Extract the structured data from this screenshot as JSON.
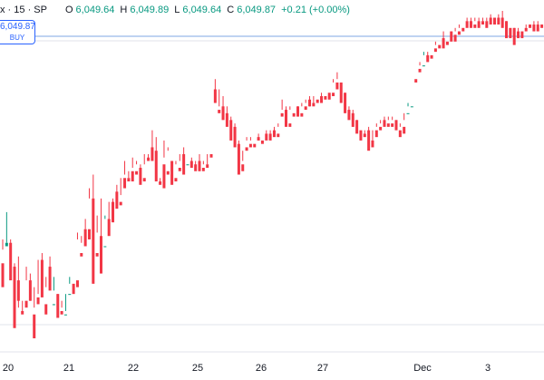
{
  "header": {
    "symbol": "x · 15 · SP",
    "open_label": "O",
    "open": "6,049.64",
    "high_label": "H",
    "high": "6,049.89",
    "low_label": "L",
    "low": "6,049.64",
    "close_label": "C",
    "close": "6,049.87",
    "change": "+0.21 (+0.00%)"
  },
  "buy_box": {
    "price": "6,049.87",
    "label": "BUY"
  },
  "colors": {
    "up": "#089981",
    "down": "#f23645",
    "grid": "#e0e3eb",
    "price_line": "#7fa7e3",
    "text": "#131722"
  },
  "chart_data": {
    "type": "candlestick",
    "x_tick_labels": [
      "20",
      "21",
      "22",
      "25",
      "26",
      "27",
      "Dec",
      "3"
    ],
    "ylim": [
      5960,
      6052
    ],
    "candles": [
      [
        0,
        5978,
        5985,
        5982,
        5971
      ],
      [
        1,
        5983,
        5993,
        5984,
        5984
      ],
      [
        2,
        5984,
        5985,
        5979,
        5973
      ],
      [
        3,
        5977,
        5978,
        5961,
        5959
      ],
      [
        4,
        5973,
        5980,
        5965,
        5967
      ],
      [
        5,
        5964,
        5964,
        5967,
        5963
      ],
      [
        6,
        5967,
        5977,
        5973,
        5965
      ],
      [
        7,
        5973,
        5975,
        5967,
        5967
      ],
      [
        8,
        5963,
        5971,
        5965,
        5956
      ],
      [
        9,
        5968,
        5969,
        5979,
        5966
      ],
      [
        10,
        5979,
        5981,
        5970,
        5968
      ],
      [
        11,
        5966,
        5971,
        5974,
        5963
      ],
      [
        12,
        5977,
        5980,
        5974,
        5970
      ],
      [
        13,
        5966,
        5974,
        5970,
        5966
      ],
      [
        14,
        5969,
        5969,
        5963,
        5962
      ],
      [
        15,
        5964,
        5967,
        5965,
        5963
      ],
      [
        16,
        5963,
        5964,
        5969,
        5963
      ],
      [
        17,
        5969,
        5972,
        5974,
        5969
      ],
      [
        18,
        5972,
        5973,
        5973,
        5969
      ],
      [
        19,
        5973,
        5987,
        5985,
        5971
      ],
      [
        20,
        5981,
        5986,
        5984,
        5980
      ],
      [
        21,
        5988,
        5991,
        5988,
        5983
      ],
      [
        22,
        5988,
        6000,
        5997,
        5985
      ],
      [
        23,
        5997,
        6004,
        5983,
        5972
      ],
      [
        24,
        5981,
        5992,
        5987,
        5980
      ],
      [
        25,
        5986,
        5997,
        5978,
        5975
      ],
      [
        26,
        5983,
        5992,
        5991,
        5983
      ],
      [
        27,
        5991,
        5996,
        5991,
        5986
      ],
      [
        28,
        5996,
        5997,
        5994,
        5990
      ],
      [
        29,
        5999,
        6001,
        5996,
        5994
      ],
      [
        30,
        5996,
        5998,
        6003,
        5995
      ],
      [
        31,
        6003,
        6008,
        6004,
        6000
      ],
      [
        32,
        6003,
        6005,
        6003,
        6002
      ],
      [
        33,
        6005,
        6009,
        6006,
        6002
      ],
      [
        34,
        6005,
        6008,
        6007,
        6004
      ],
      [
        35,
        6006,
        6007,
        6002,
        6001
      ],
      [
        36,
        6003,
        6007,
        6010,
        6002
      ],
      [
        37,
        6009,
        6010,
        6008,
        6008
      ],
      [
        38,
        6012,
        6017,
        6009,
        6008
      ],
      [
        39,
        6011,
        6015,
        6003,
        6002
      ],
      [
        40,
        6002,
        6002,
        6003,
        6001
      ],
      [
        41,
        6007,
        6014,
        6009,
        6000
      ],
      [
        42,
        6005,
        6011,
        6012,
        6004
      ],
      [
        43,
        6008,
        6008,
        6002,
        6001
      ],
      [
        44,
        6003,
        6008,
        6007,
        6002
      ],
      [
        45,
        6006,
        6010,
        6008,
        6005
      ],
      [
        46,
        6010,
        6012,
        6005,
        6004
      ],
      [
        47,
        6007,
        6007,
        6007,
        6007
      ],
      [
        48,
        6008,
        6009,
        6007,
        6006
      ],
      [
        49,
        6007,
        6008,
        6006,
        6005
      ],
      [
        50,
        6008,
        6010,
        6005,
        6005
      ],
      [
        51,
        6006,
        6007,
        6008,
        6005
      ],
      [
        52,
        6007,
        6007,
        6010,
        6006
      ],
      [
        53,
        6010,
        6011,
        6011,
        6009
      ],
      [
        54,
        6029,
        6032,
        6025,
        6025
      ],
      [
        55,
        6023,
        6029,
        6024,
        6022
      ],
      [
        56,
        6024,
        6027,
        6022,
        6020
      ],
      [
        57,
        6022,
        6024,
        6020,
        6018
      ],
      [
        58,
        6020,
        6021,
        6018,
        6014
      ],
      [
        59,
        6018,
        6019,
        6013,
        6012
      ],
      [
        60,
        6013,
        6014,
        6007,
        6004
      ],
      [
        61,
        6007,
        6008,
        6011,
        6005
      ],
      [
        62,
        6012,
        6015,
        6014,
        6011
      ],
      [
        63,
        6013,
        6015,
        6014,
        6012
      ],
      [
        64,
        6013,
        6015,
        6015,
        6012
      ],
      [
        65,
        6015,
        6016,
        6014,
        6014
      ],
      [
        66,
        6014,
        6016,
        6016,
        6013
      ],
      [
        67,
        6016,
        6017,
        6016,
        6014
      ],
      [
        68,
        6016,
        6017,
        6016,
        6014
      ],
      [
        69,
        6017,
        6018,
        6016,
        6015
      ],
      [
        70,
        6016,
        6019,
        6018,
        6015
      ],
      [
        71,
        6022,
        6026,
        6023,
        6021
      ],
      [
        72,
        6023,
        6024,
        6019,
        6018
      ],
      [
        73,
        6019,
        6024,
        6023,
        6018
      ],
      [
        74,
        6022,
        6024,
        6024,
        6021
      ],
      [
        75,
        6024,
        6024,
        6022,
        6021
      ],
      [
        76,
        6022,
        6025,
        6024,
        6021
      ],
      [
        77,
        6024,
        6025,
        6026,
        6023
      ],
      [
        78,
        6026,
        6027,
        6024,
        6024
      ],
      [
        79,
        6025,
        6027,
        6025,
        6024
      ],
      [
        80,
        6026,
        6027,
        6027,
        6025
      ],
      [
        81,
        6027,
        6028,
        6027,
        6025
      ],
      [
        82,
        6027,
        6028,
        6028,
        6026
      ],
      [
        83,
        6028,
        6029,
        6029,
        6026
      ],
      [
        84,
        6028,
        6032,
        6031,
        6027
      ],
      [
        85,
        6031,
        6034,
        6032,
        6029
      ],
      [
        86,
        6031,
        6031,
        6028,
        6025
      ],
      [
        87,
        6028,
        6028,
        6023,
        6022
      ],
      [
        88,
        6023,
        6024,
        6021,
        6020
      ],
      [
        89,
        6022,
        6023,
        6018,
        6018
      ],
      [
        90,
        6020,
        6020,
        6017,
        6016
      ],
      [
        91,
        6017,
        6017,
        6017,
        6014
      ],
      [
        92,
        6016,
        6016,
        6017,
        6015
      ],
      [
        93,
        6017,
        6018,
        6014,
        6011
      ],
      [
        94,
        6014,
        6014,
        6017,
        6012
      ],
      [
        95,
        6017,
        6019,
        6018,
        6015
      ],
      [
        96,
        6018,
        6020,
        6019,
        6017
      ],
      [
        97,
        6020,
        6021,
        6019,
        6018
      ],
      [
        98,
        6019,
        6021,
        6020,
        6018
      ],
      [
        99,
        6019,
        6021,
        6020,
        6018
      ],
      [
        100,
        6020,
        6020,
        6018,
        6017
      ],
      [
        101,
        6017,
        6018,
        6019,
        6015
      ],
      [
        102,
        6018,
        6020,
        6022,
        6016
      ],
      [
        103,
        6022,
        6025,
        6024,
        6022
      ],
      [
        104,
        6024,
        6030,
        6030,
        6024
      ],
      [
        105,
        6032,
        6034,
        6034,
        6031
      ],
      [
        106,
        6035,
        6037,
        6036,
        6034
      ],
      [
        107,
        6036,
        6039,
        6040,
        6036
      ],
      [
        108,
        6039,
        6040,
        6038,
        6037
      ],
      [
        109,
        6039,
        6041,
        6041,
        6038
      ],
      [
        110,
        6041,
        6043,
        6042,
        6040
      ],
      [
        111,
        6042,
        6044,
        6044,
        6041
      ],
      [
        112,
        6044,
        6046,
        6042,
        6041
      ],
      [
        113,
        6043,
        6046,
        6046,
        6042
      ],
      [
        114,
        6046,
        6046,
        6044,
        6043
      ],
      [
        115,
        6045,
        6047,
        6046,
        6043
      ],
      [
        116,
        6046,
        6048,
        6047,
        6045
      ],
      [
        117,
        6047,
        6049,
        6049,
        6046
      ],
      [
        118,
        6049,
        6050,
        6049,
        6047
      ],
      [
        119,
        6049,
        6050,
        6048,
        6047
      ],
      [
        120,
        6048,
        6050,
        6049,
        6047
      ],
      [
        121,
        6049,
        6050,
        6049,
        6047
      ],
      [
        122,
        6049,
        6050,
        6049,
        6048
      ],
      [
        123,
        6049,
        6050,
        6049,
        6047
      ],
      [
        124,
        6050,
        6051,
        6049,
        6048
      ],
      [
        125,
        6050,
        6051,
        6051,
        6048
      ],
      [
        126,
        6050,
        6051,
        6050,
        6048
      ],
      [
        127,
        6050,
        6052,
        6049,
        6047
      ],
      [
        128,
        6049,
        6049,
        6047,
        6044
      ],
      [
        129,
        6047,
        6048,
        6048,
        6044
      ],
      [
        130,
        6047,
        6047,
        6045,
        6042
      ],
      [
        131,
        6046,
        6047,
        6046,
        6044
      ],
      [
        132,
        6046,
        6047,
        6047,
        6044
      ],
      [
        133,
        6047,
        6048,
        6047,
        6046
      ],
      [
        134,
        6048,
        6048,
        6048,
        6047
      ],
      [
        135,
        6048,
        6049,
        6048,
        6046
      ],
      [
        136,
        6048,
        6049,
        6048,
        6046
      ],
      [
        137,
        6048,
        6049,
        6049,
        6047
      ],
      [
        138,
        6049,
        6050,
        6049,
        6048
      ]
    ]
  }
}
